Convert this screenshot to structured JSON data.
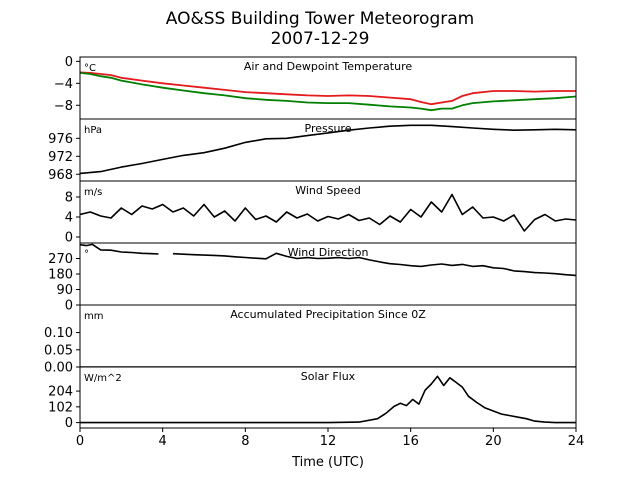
{
  "title": {
    "line1": "AO&SS Building Tower Meteorogram",
    "line2": "2007-12-29"
  },
  "colors": {
    "air_temp": "#e41a1c",
    "dewpoint": "#008000",
    "black": "#000000"
  },
  "chart_data": {
    "type": "line",
    "xlabel": "Time (UTC)",
    "xlim": [
      0,
      24
    ],
    "xticks": [
      0,
      4,
      8,
      12,
      16,
      20,
      24
    ],
    "grid": false,
    "panels": [
      {
        "key": "temperature",
        "title": "Air and Dewpoint Temperature",
        "unit": "°C",
        "ylim": [
          -10.5,
          0.8
        ],
        "yticks": [
          0,
          -4,
          -8
        ],
        "series": [
          {
            "color": "#e41a1c",
            "x": [
              0,
              0.5,
              1,
              1.5,
              2,
              3,
              4,
              5,
              6,
              7,
              8,
              9,
              10,
              11,
              12,
              13,
              14,
              15,
              16,
              16.5,
              17,
              17.5,
              18,
              18.5,
              19,
              20,
              21,
              22,
              23,
              24
            ],
            "y": [
              -2.0,
              -2.1,
              -2.3,
              -2.5,
              -3.0,
              -3.5,
              -4.0,
              -4.4,
              -4.8,
              -5.2,
              -5.6,
              -5.8,
              -6.0,
              -6.2,
              -6.3,
              -6.2,
              -6.3,
              -6.6,
              -6.9,
              -7.4,
              -7.8,
              -7.5,
              -7.2,
              -6.3,
              -5.8,
              -5.4,
              -5.4,
              -5.5,
              -5.4,
              -5.4
            ]
          },
          {
            "color": "#008000",
            "x": [
              0,
              0.5,
              1,
              1.5,
              2,
              3,
              4,
              5,
              6,
              7,
              8,
              9,
              10,
              11,
              12,
              13,
              14,
              15,
              16,
              16.5,
              17,
              17.5,
              18,
              18.5,
              19,
              20,
              21,
              22,
              23,
              24
            ],
            "y": [
              -2.1,
              -2.3,
              -2.7,
              -3.0,
              -3.5,
              -4.2,
              -4.8,
              -5.3,
              -5.8,
              -6.2,
              -6.7,
              -7.0,
              -7.2,
              -7.5,
              -7.6,
              -7.6,
              -7.9,
              -8.2,
              -8.4,
              -8.6,
              -8.9,
              -8.6,
              -8.6,
              -8.0,
              -7.6,
              -7.3,
              -7.1,
              -6.9,
              -6.7,
              -6.4
            ]
          }
        ]
      },
      {
        "key": "pressure",
        "title": "Pressure",
        "unit": "hPa",
        "ylim": [
          966.5,
          980.3
        ],
        "yticks": [
          976,
          972,
          968
        ],
        "series": [
          {
            "color": "#000000",
            "x": [
              0,
              1,
              2,
              3,
              4,
              5,
              6,
              7,
              8,
              9,
              10,
              11,
              12,
              13,
              14,
              15,
              16,
              17,
              18,
              19,
              20,
              21,
              22,
              23,
              24
            ],
            "y": [
              968.2,
              968.6,
              969.6,
              970.4,
              971.3,
              972.2,
              972.8,
              973.8,
              975.1,
              975.9,
              976.0,
              976.6,
              977.2,
              977.8,
              978.3,
              978.7,
              978.9,
              978.9,
              978.6,
              978.3,
              978.0,
              977.8,
              977.9,
              978.0,
              977.9
            ]
          }
        ]
      },
      {
        "key": "wind_speed",
        "title": "Wind Speed",
        "unit": "m/s",
        "ylim": [
          -1.2,
          11.2
        ],
        "yticks": [
          8,
          4,
          0
        ],
        "series": [
          {
            "color": "#000000",
            "x": [
              0,
              0.5,
              1,
              1.5,
              2,
              2.5,
              3,
              3.5,
              4,
              4.5,
              5,
              5.5,
              6,
              6.5,
              7,
              7.5,
              8,
              8.5,
              9,
              9.5,
              10,
              10.5,
              11,
              11.5,
              12,
              12.5,
              13,
              13.5,
              14,
              14.5,
              15,
              15.5,
              16,
              16.5,
              17,
              17.5,
              18,
              18.5,
              19,
              19.5,
              20,
              20.5,
              21,
              21.5,
              22,
              22.5,
              23,
              23.5,
              24
            ],
            "y": [
              4.5,
              5.0,
              4.2,
              3.8,
              5.8,
              4.5,
              6.2,
              5.6,
              6.5,
              5.0,
              5.8,
              4.2,
              6.5,
              4.0,
              5.2,
              3.2,
              5.8,
              3.5,
              4.2,
              3.0,
              5.0,
              3.8,
              4.6,
              3.2,
              4.1,
              3.6,
              4.5,
              3.3,
              3.8,
              2.5,
              4.2,
              3.0,
              5.5,
              4.0,
              7.0,
              5.0,
              8.5,
              4.5,
              6.0,
              3.8,
              4.0,
              3.2,
              4.4,
              1.2,
              3.5,
              4.5,
              3.2,
              3.6,
              3.4
            ]
          }
        ]
      },
      {
        "key": "wind_direction",
        "title": "Wind Direction",
        "unit": "°",
        "ylim": [
          0,
          360
        ],
        "yticks": [
          270,
          180,
          90,
          0
        ],
        "segments": [
          {
            "color": "#000000",
            "x": [
              0,
              0.3,
              0.6,
              1,
              1.5,
              2,
              2.5,
              3,
              3.5,
              3.8
            ],
            "y": [
              350,
              345,
              352,
              320,
              318,
              308,
              305,
              300,
              298,
              296
            ]
          },
          {
            "color": "#000000",
            "x": [
              4.5,
              5,
              5.5,
              6,
              6.5,
              7,
              7.5,
              8,
              8.5,
              9,
              9.5,
              10,
              10.5,
              11,
              11.5,
              12,
              12.5,
              13,
              13.5,
              14,
              14.5,
              15,
              15.5,
              16,
              16.5,
              17,
              17.5,
              18,
              18.5,
              19,
              19.5,
              20,
              20.5,
              21,
              21.5,
              22,
              22.5,
              23,
              23.5,
              24
            ],
            "y": [
              298,
              295,
              292,
              290,
              288,
              285,
              280,
              276,
              272,
              268,
              300,
              282,
              270,
              275,
              270,
              272,
              275,
              270,
              276,
              262,
              250,
              240,
              235,
              228,
              224,
              232,
              238,
              230,
              236,
              224,
              228,
              216,
              212,
              198,
              194,
              188,
              186,
              182,
              176,
              172
            ]
          }
        ]
      },
      {
        "key": "precipitation",
        "title": "Accumulated Precipitation Since 0Z",
        "unit": "mm",
        "ylim": [
          0,
          0.18
        ],
        "yticks": [
          0.1,
          0.05,
          0.0
        ],
        "ytick_labels": [
          "0.10",
          "0.05",
          "0.00"
        ],
        "series": [
          {
            "color": "#000000",
            "x": [
              0,
              24
            ],
            "y": [
              0,
              0
            ]
          }
        ]
      },
      {
        "key": "solar_flux",
        "title": "Solar Flux",
        "unit": "W/m^2",
        "ylim": [
          -35,
          360
        ],
        "yticks": [
          204,
          102,
          0
        ],
        "series": [
          {
            "color": "#000000",
            "x": [
              0,
              12,
              13.5,
              14.4,
              14.8,
              15.2,
              15.5,
              15.8,
              16.1,
              16.4,
              16.7,
              17.0,
              17.3,
              17.6,
              17.9,
              18.2,
              18.5,
              18.8,
              19.2,
              19.6,
              20.0,
              20.4,
              20.8,
              21.2,
              21.6,
              22.0,
              22.5,
              23.0,
              23.5,
              24
            ],
            "y": [
              0,
              0,
              3,
              25,
              60,
              105,
              125,
              110,
              150,
              120,
              210,
              250,
              300,
              240,
              290,
              260,
              230,
              170,
              130,
              95,
              75,
              55,
              45,
              35,
              25,
              10,
              3,
              0,
              0,
              0
            ]
          }
        ]
      }
    ]
  }
}
